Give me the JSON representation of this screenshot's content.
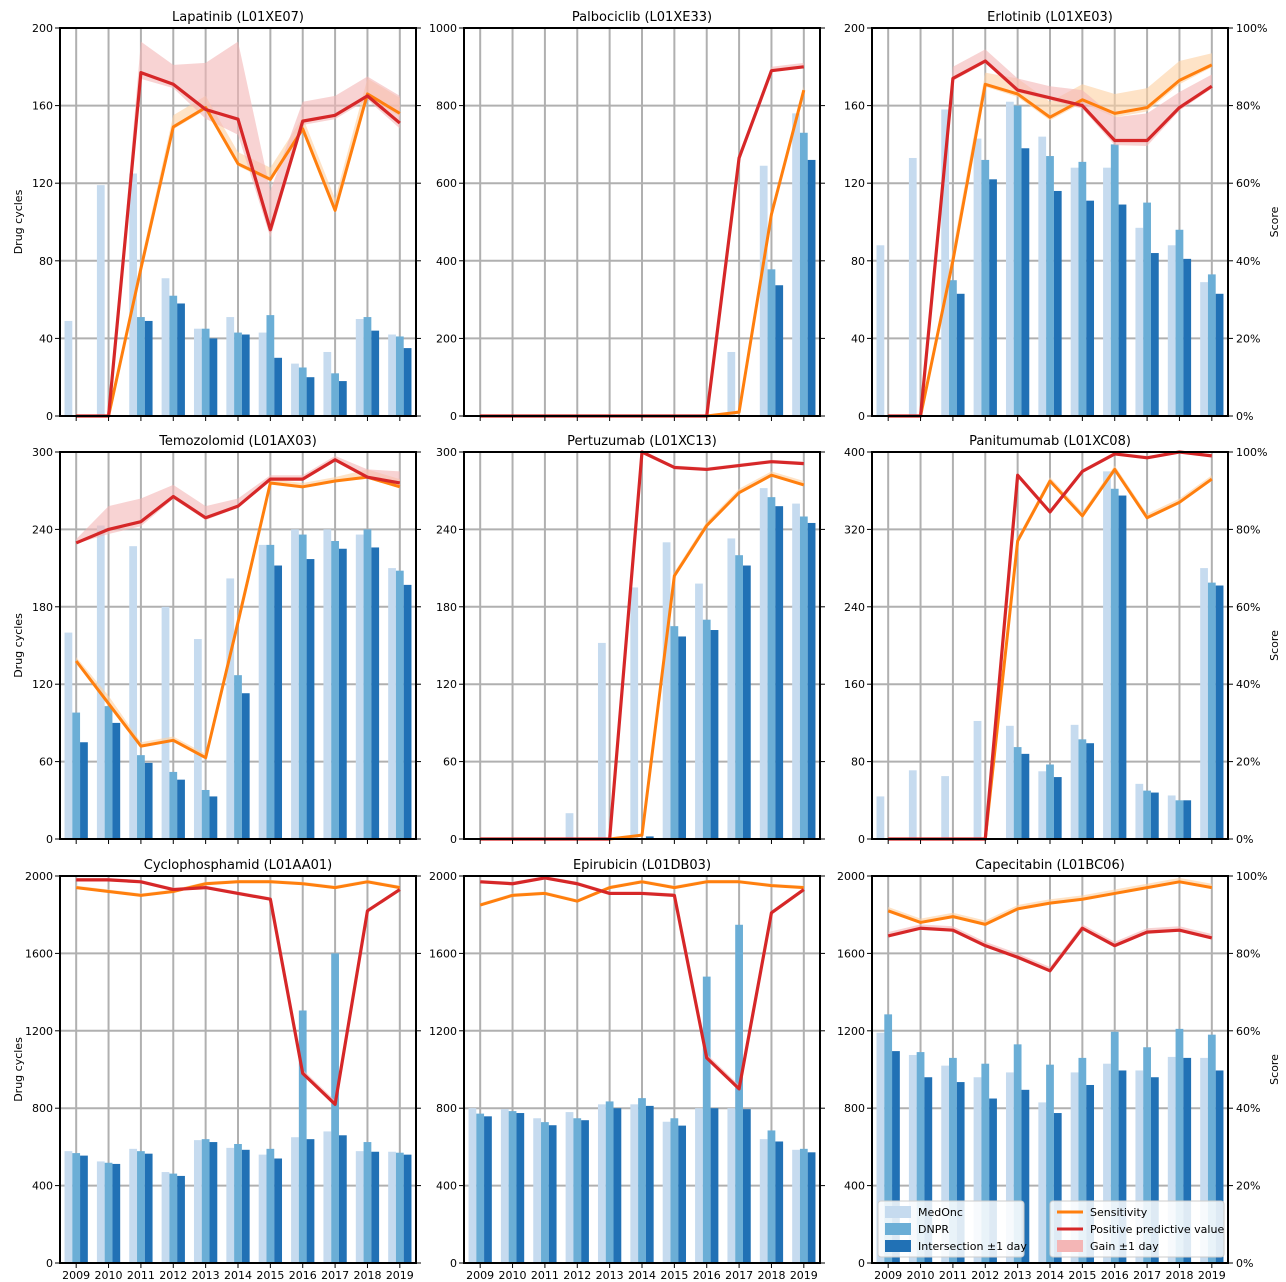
{
  "chart_data": {
    "type": "bar",
    "layout": "3x3 grid, shared x categories, left axis Drug cycles, right axis Score",
    "categories": [
      "2009",
      "2010",
      "2011",
      "2012",
      "2013",
      "2014",
      "2015",
      "2016",
      "2017",
      "2018",
      "2019"
    ],
    "ylabel_left": "Drug cycles",
    "ylabel_right": "Score",
    "legend": {
      "placement": "bottom-right of last panel",
      "bars": [
        {
          "name": "MedOnc",
          "color": "#c6dbef"
        },
        {
          "name": "DNPR",
          "color": "#6baed6"
        },
        {
          "name": "Intersection ±1 day",
          "color": "#2171b5"
        }
      ],
      "lines": [
        {
          "name": "Sensitivity",
          "color": "#ff7f0e"
        },
        {
          "name": "Positive predictive value",
          "color": "#d62728"
        },
        {
          "name": "Gain ±1 day",
          "color": "#f4b6b6"
        }
      ]
    },
    "colors": {
      "medonc": "#c6dbef",
      "dnpr": "#6baed6",
      "intersection": "#2171b5",
      "sensitivity": "#ff7f0e",
      "ppv": "#d62728",
      "sens_band": "#fdd0a2",
      "ppv_band": "#f4b6b6",
      "grid": "#b0b0b0"
    },
    "panels": [
      {
        "title": "Lapatinib (L01XE07)",
        "ylim": [
          0,
          200
        ],
        "yticks": [
          "0",
          "40",
          "80",
          "120",
          "160",
          "200"
        ],
        "show_left_label": true,
        "show_right_label": false,
        "show_right_ticks": false,
        "show_x_ticks": false,
        "medonc": [
          49,
          119,
          125,
          71,
          45,
          51,
          43,
          27,
          33,
          50,
          42
        ],
        "dnpr": [
          0,
          0,
          51,
          62,
          45,
          43,
          52,
          25,
          22,
          51,
          41
        ],
        "intersection": [
          0,
          0,
          49,
          58,
          40,
          42,
          30,
          20,
          18,
          44,
          35
        ],
        "sensitivity": [
          0,
          0,
          0.38,
          0.745,
          0.795,
          0.65,
          0.61,
          0.74,
          0.53,
          0.83,
          0.78
        ],
        "ppv": [
          0,
          0,
          0.885,
          0.855,
          0.79,
          0.765,
          0.48,
          0.76,
          0.775,
          0.825,
          0.755
        ],
        "sensitivity_band": [
          0,
          0,
          0.02,
          0.03,
          0.03,
          0.03,
          0.03,
          0.03,
          0.03,
          0.04,
          0.04
        ],
        "ppv_band": [
          0,
          0,
          0.08,
          0.05,
          0.12,
          0.2,
          0.1,
          0.05,
          0.05,
          0.05,
          0.07
        ]
      },
      {
        "title": "Palbociclib (L01XE33)",
        "ylim": [
          0,
          1000
        ],
        "yticks": [
          "0",
          "200",
          "400",
          "600",
          "800",
          "1000"
        ],
        "show_left_label": false,
        "show_right_label": false,
        "show_right_ticks": false,
        "show_x_ticks": false,
        "medonc": [
          0,
          0,
          0,
          0,
          0,
          0,
          0,
          0,
          165,
          645,
          780
        ],
        "dnpr": [
          0,
          0,
          0,
          0,
          0,
          0,
          0,
          0,
          0,
          378,
          730
        ],
        "intersection": [
          0,
          0,
          0,
          0,
          0,
          0,
          0,
          0,
          0,
          337,
          660
        ],
        "sensitivity": [
          0,
          0,
          0,
          0,
          0,
          0,
          0,
          0,
          0.01,
          0.52,
          0.84
        ],
        "ppv": [
          0,
          0,
          0,
          0,
          0,
          0,
          0,
          0,
          0.665,
          0.89,
          0.9
        ],
        "sensitivity_band": [
          0,
          0,
          0,
          0,
          0,
          0,
          0,
          0,
          0.005,
          0.01,
          0.01
        ],
        "ppv_band": [
          0,
          0,
          0,
          0,
          0,
          0,
          0,
          0,
          0.01,
          0.01,
          0.01
        ]
      },
      {
        "title": "Erlotinib (L01XE03)",
        "ylim": [
          0,
          200
        ],
        "yticks": [
          "0",
          "40",
          "80",
          "120",
          "160",
          "200"
        ],
        "show_left_label": false,
        "show_right_label": true,
        "show_right_ticks": true,
        "show_x_ticks": false,
        "medonc": [
          88,
          133,
          158,
          143,
          162,
          144,
          128,
          128,
          97,
          88,
          69
        ],
        "dnpr": [
          0,
          0,
          70,
          132,
          160,
          134,
          131,
          140,
          110,
          96,
          73
        ],
        "intersection": [
          0,
          0,
          63,
          122,
          138,
          116,
          111,
          109,
          84,
          81,
          63
        ],
        "sensitivity": [
          0,
          0,
          0.4,
          0.855,
          0.83,
          0.77,
          0.815,
          0.78,
          0.795,
          0.865,
          0.905
        ],
        "ppv": [
          0,
          0,
          0.87,
          0.915,
          0.84,
          0.82,
          0.8,
          0.71,
          0.71,
          0.795,
          0.85
        ],
        "sensitivity_band": [
          0,
          0,
          0.03,
          0.03,
          0.04,
          0.04,
          0.04,
          0.05,
          0.05,
          0.05,
          0.03
        ],
        "ppv_band": [
          0,
          0,
          0.03,
          0.03,
          0.03,
          0.03,
          0.04,
          0.06,
          0.07,
          0.04,
          0.03
        ]
      },
      {
        "title": "Temozolomid (L01AX03)",
        "ylim": [
          0,
          300
        ],
        "yticks": [
          "0",
          "60",
          "120",
          "180",
          "240",
          "300"
        ],
        "show_left_label": true,
        "show_right_label": false,
        "show_right_ticks": false,
        "show_x_ticks": false,
        "medonc": [
          160,
          243,
          227,
          180,
          155,
          202,
          228,
          240,
          240,
          236,
          210
        ],
        "dnpr": [
          98,
          103,
          65,
          52,
          38,
          127,
          228,
          236,
          231,
          240,
          208
        ],
        "intersection": [
          75,
          90,
          59,
          46,
          33,
          113,
          212,
          217,
          225,
          226,
          197
        ],
        "sensitivity": [
          0.46,
          0.35,
          0.24,
          0.255,
          0.21,
          0.56,
          0.92,
          0.91,
          0.925,
          0.935,
          0.91
        ],
        "ppv": [
          0.765,
          0.8,
          0.82,
          0.885,
          0.83,
          0.86,
          0.93,
          0.93,
          0.98,
          0.935,
          0.92
        ],
        "sensitivity_band": [
          0.01,
          0.02,
          0.01,
          0.01,
          0.01,
          0.02,
          0.01,
          0.01,
          0.01,
          0.02,
          0.02
        ],
        "ppv_band": [
          0.01,
          0.06,
          0.06,
          0.03,
          0.03,
          0.02,
          0.01,
          0.01,
          0.01,
          0.02,
          0.03
        ]
      },
      {
        "title": "Pertuzumab (L01XC13)",
        "ylim": [
          0,
          300
        ],
        "yticks": [
          "0",
          "60",
          "120",
          "180",
          "240",
          "300"
        ],
        "show_left_label": false,
        "show_right_label": false,
        "show_right_ticks": false,
        "show_x_ticks": false,
        "medonc": [
          0,
          0,
          0,
          20,
          152,
          195,
          230,
          198,
          233,
          272,
          260
        ],
        "dnpr": [
          0,
          0,
          0,
          0,
          0,
          0,
          165,
          170,
          220,
          265,
          250
        ],
        "intersection": [
          0,
          0,
          0,
          0,
          0,
          2,
          157,
          162,
          212,
          258,
          245
        ],
        "sensitivity": [
          0,
          0,
          0,
          0,
          0,
          0.01,
          0.68,
          0.81,
          0.895,
          0.94,
          0.915
        ],
        "ppv": [
          0,
          0,
          0,
          0,
          0,
          1.0,
          0.96,
          0.955,
          0.965,
          0.975,
          0.97
        ],
        "sensitivity_band": [
          0,
          0,
          0,
          0,
          0,
          0.005,
          0.01,
          0.01,
          0.01,
          0.01,
          0.01
        ],
        "ppv_band": [
          0,
          0,
          0,
          0,
          0,
          0.005,
          0.005,
          0.005,
          0.005,
          0.005,
          0.005
        ]
      },
      {
        "title": "Panitumumab (L01XC08)",
        "ylim": [
          0,
          400
        ],
        "yticks": [
          "0",
          "80",
          "160",
          "240",
          "320",
          "400"
        ],
        "show_left_label": false,
        "show_right_label": true,
        "show_right_ticks": true,
        "show_x_ticks": false,
        "medonc": [
          44,
          71,
          65,
          122,
          117,
          70,
          118,
          380,
          57,
          45,
          280
        ],
        "dnpr": [
          0,
          0,
          0,
          0,
          95,
          77,
          103,
          362,
          50,
          40,
          265
        ],
        "intersection": [
          0,
          0,
          0,
          0,
          88,
          64,
          99,
          355,
          48,
          40,
          262
        ],
        "sensitivity": [
          0,
          0,
          0,
          0,
          0.77,
          0.925,
          0.835,
          0.955,
          0.83,
          0.87,
          0.93
        ],
        "ppv": [
          0,
          0,
          0,
          0,
          0.94,
          0.845,
          0.95,
          0.995,
          0.985,
          1.0,
          0.99
        ],
        "sensitivity_band": [
          0,
          0,
          0,
          0,
          0.01,
          0.01,
          0.01,
          0.01,
          0.01,
          0.01,
          0.01
        ],
        "ppv_band": [
          0,
          0,
          0,
          0,
          0.005,
          0.005,
          0.005,
          0.005,
          0.005,
          0.005,
          0.005
        ]
      },
      {
        "title": "Cyclophosphamid (L01AA01)",
        "ylim": [
          0,
          2000
        ],
        "yticks": [
          "0",
          "400",
          "800",
          "1200",
          "1600",
          "2000"
        ],
        "show_left_label": true,
        "show_right_label": false,
        "show_right_ticks": false,
        "show_x_ticks": true,
        "medonc": [
          578,
          525,
          590,
          470,
          635,
          595,
          560,
          650,
          680,
          578,
          575
        ],
        "dnpr": [
          568,
          518,
          578,
          462,
          640,
          615,
          590,
          1305,
          1600,
          625,
          570
        ],
        "intersection": [
          555,
          512,
          565,
          450,
          625,
          585,
          540,
          640,
          660,
          575,
          560
        ],
        "sensitivity": [
          0.97,
          0.96,
          0.95,
          0.96,
          0.98,
          0.985,
          0.985,
          0.98,
          0.97,
          0.985,
          0.97
        ],
        "ppv": [
          0.99,
          0.99,
          0.985,
          0.965,
          0.97,
          0.955,
          0.94,
          0.49,
          0.41,
          0.91,
          0.965
        ],
        "sensitivity_band": [
          0.005,
          0.005,
          0.005,
          0.005,
          0.005,
          0.005,
          0.005,
          0.005,
          0.005,
          0.005,
          0.005
        ],
        "ppv_band": [
          0.005,
          0.005,
          0.005,
          0.005,
          0.005,
          0.005,
          0.005,
          0.01,
          0.01,
          0.005,
          0.005
        ]
      },
      {
        "title": "Epirubicin (L01DB03)",
        "ylim": [
          0,
          2000
        ],
        "yticks": [
          "0",
          "400",
          "800",
          "1200",
          "1600",
          "2000"
        ],
        "show_left_label": false,
        "show_right_label": false,
        "show_right_ticks": false,
        "show_x_ticks": true,
        "medonc": [
          800,
          795,
          748,
          780,
          820,
          820,
          730,
          800,
          800,
          640,
          585
        ],
        "dnpr": [
          772,
          785,
          728,
          748,
          835,
          852,
          748,
          1480,
          1748,
          685,
          590
        ],
        "intersection": [
          758,
          775,
          712,
          738,
          800,
          812,
          710,
          800,
          795,
          628,
          572
        ],
        "sensitivity": [
          0.925,
          0.95,
          0.955,
          0.935,
          0.97,
          0.985,
          0.97,
          0.985,
          0.985,
          0.975,
          0.97
        ],
        "ppv": [
          0.985,
          0.98,
          0.995,
          0.98,
          0.955,
          0.955,
          0.95,
          0.53,
          0.45,
          0.905,
          0.965
        ],
        "sensitivity_band": [
          0.005,
          0.005,
          0.005,
          0.005,
          0.005,
          0.005,
          0.005,
          0.005,
          0.005,
          0.005,
          0.005
        ],
        "ppv_band": [
          0.005,
          0.005,
          0.005,
          0.005,
          0.005,
          0.005,
          0.005,
          0.01,
          0.01,
          0.005,
          0.005
        ]
      },
      {
        "title": "Capecitabin (L01BC06)",
        "ylim": [
          0,
          2000
        ],
        "yticks": [
          "0",
          "400",
          "800",
          "1200",
          "1600",
          "2000"
        ],
        "show_left_label": false,
        "show_right_label": true,
        "show_right_ticks": true,
        "show_x_ticks": true,
        "medonc": [
          1190,
          1075,
          1020,
          960,
          985,
          830,
          985,
          1030,
          995,
          1065,
          1060
        ],
        "dnpr": [
          1285,
          1090,
          1060,
          1030,
          1130,
          1025,
          1060,
          1195,
          1115,
          1210,
          1180
        ],
        "intersection": [
          1095,
          960,
          935,
          850,
          895,
          775,
          920,
          995,
          960,
          1060,
          995
        ],
        "sensitivity": [
          0.91,
          0.88,
          0.895,
          0.875,
          0.915,
          0.93,
          0.94,
          0.955,
          0.97,
          0.985,
          0.97
        ],
        "ppv": [
          0.845,
          0.865,
          0.86,
          0.82,
          0.79,
          0.755,
          0.865,
          0.82,
          0.855,
          0.86,
          0.84
        ],
        "sensitivity_band": [
          0.01,
          0.01,
          0.01,
          0.01,
          0.01,
          0.01,
          0.01,
          0.01,
          0.01,
          0.01,
          0.01
        ],
        "ppv_band": [
          0.01,
          0.01,
          0.01,
          0.01,
          0.01,
          0.01,
          0.01,
          0.01,
          0.01,
          0.01,
          0.01
        ]
      }
    ],
    "right_ticks": [
      "0%",
      "20%",
      "40%",
      "60%",
      "80%",
      "100%"
    ]
  }
}
